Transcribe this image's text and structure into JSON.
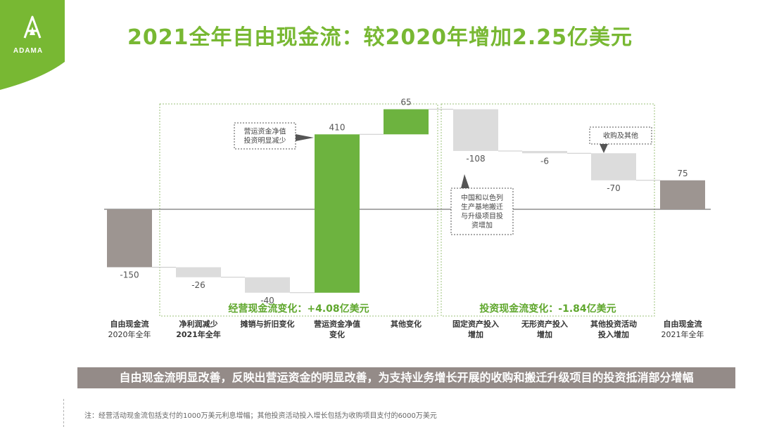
{
  "logo": {
    "text": "ADAMA"
  },
  "title": "2021全年自由现金流：较2020年增加2.25亿美元",
  "chart_data": {
    "type": "waterfall",
    "categories": [
      [
        "自由现金流",
        "2020年全年"
      ],
      [
        "净利润减少",
        "2021年全年"
      ],
      [
        "摊销与折旧变化"
      ],
      [
        "营运资金净值",
        "变化"
      ],
      [
        "其他变化"
      ],
      [
        "固定资产投入",
        "增加"
      ],
      [
        "无形资产投入",
        "增加"
      ],
      [
        "其他投资活动",
        "投入增加"
      ],
      [
        "自由现金流",
        "2021年全年"
      ]
    ],
    "values": [
      -150,
      -26,
      -40,
      410,
      65,
      -108,
      -6,
      -70,
      75
    ],
    "kinds": [
      "total",
      "delta",
      "delta",
      "delta",
      "delta",
      "delta",
      "delta",
      "delta",
      "total"
    ],
    "value_labels": [
      "-150",
      "-26",
      "-40",
      "410",
      "65",
      "-108",
      "-6",
      "-70",
      "75"
    ],
    "groups": [
      {
        "label": "经营现金流变化：+4.08亿美元",
        "members": [
          1,
          2,
          3,
          4
        ]
      },
      {
        "label": "投资现金流变化：-1.84亿美元",
        "members": [
          5,
          6,
          7
        ]
      }
    ],
    "annotations": [
      {
        "lines": [
          "营运资金净值",
          "投资明显减少"
        ],
        "target": 3
      },
      {
        "lines": [
          "中国和以色列",
          "生产基地搬迁",
          "与升级项目投",
          "资增加"
        ],
        "target": 5
      },
      {
        "lines": [
          "收购及其他"
        ],
        "target": 7
      }
    ],
    "colors": {
      "total": "#9D9591",
      "increase": "#6DB33F",
      "decrease": "#DCDCDC",
      "group_border": "#9BC278",
      "group_label": "#5FA72D"
    }
  },
  "summary": "自由现金流明显改善，反映出营运资金的明显改善，为支持业务增长开展的收购和搬迁升级项目的投资抵消部分增幅",
  "footnote": "注：经营活动现金流包括支付的1000万美元利息增幅；其他投资活动投入增长包括为收购项目支付的6000万美元"
}
